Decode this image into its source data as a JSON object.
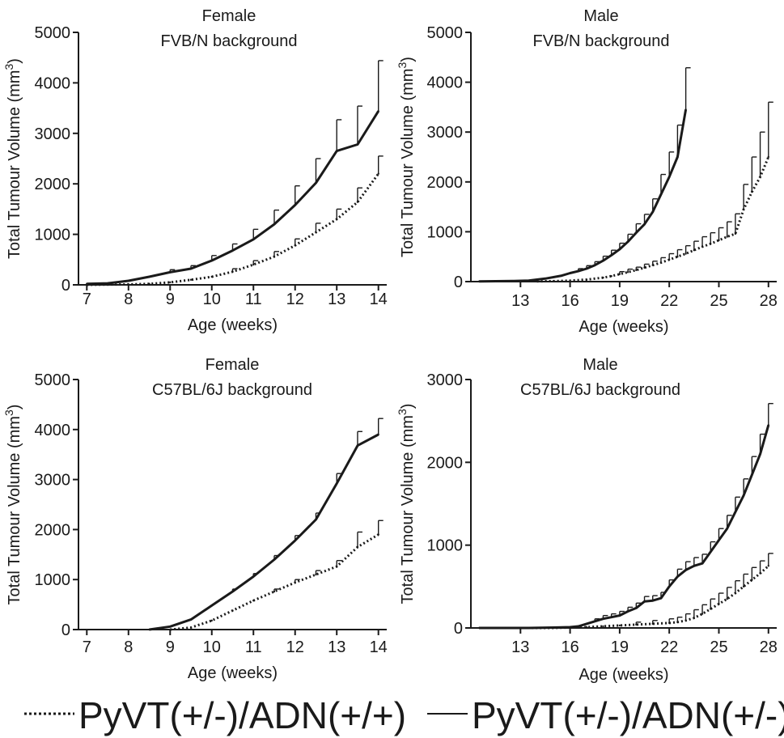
{
  "chart_data": [
    {
      "type": "line",
      "title_lines": [
        "Female",
        "FVB/N background"
      ],
      "xlabel": "Age (weeks)",
      "ylabel": "Total Tumour Volume (mm",
      "ylabel_sup": "3",
      "ylabel_end": ")",
      "xlim": [
        6.8,
        14.2
      ],
      "ylim": [
        0,
        5000
      ],
      "xticks": [
        7,
        8,
        9,
        10,
        11,
        12,
        13,
        14
      ],
      "yticks": [
        0,
        1000,
        2000,
        3000,
        4000,
        5000
      ],
      "series": [
        {
          "style": "solid",
          "x": [
            7,
            7.5,
            8,
            8.5,
            9,
            9.5,
            10,
            10.5,
            11,
            11.5,
            12,
            12.5,
            13,
            13.5,
            14
          ],
          "y": [
            20,
            30,
            80,
            160,
            250,
            320,
            480,
            680,
            900,
            1200,
            1580,
            2020,
            2650,
            2780,
            3440
          ],
          "err": [
            10,
            10,
            20,
            40,
            50,
            60,
            100,
            130,
            200,
            280,
            380,
            480,
            620,
            760,
            1000
          ]
        },
        {
          "style": "dotted",
          "x": [
            7,
            7.5,
            8,
            8.5,
            9,
            9.5,
            10,
            10.5,
            11,
            11.5,
            12,
            12.5,
            13,
            13.5,
            14
          ],
          "y": [
            0,
            5,
            10,
            20,
            50,
            100,
            160,
            260,
            400,
            560,
            780,
            1040,
            1300,
            1640,
            2200
          ],
          "err": [
            5,
            5,
            10,
            20,
            30,
            40,
            40,
            60,
            80,
            100,
            130,
            180,
            200,
            280,
            350
          ]
        }
      ]
    },
    {
      "type": "line",
      "title_lines": [
        "Male",
        "FVB/N background"
      ],
      "xlabel": "Age (weeks)",
      "ylabel": "Total Tumour Volume (mm",
      "ylabel_sup": "3",
      "ylabel_end": ")",
      "xlim": [
        10,
        28.5
      ],
      "ylim": [
        0,
        5000
      ],
      "xticks": [
        13,
        16,
        19,
        22,
        25,
        28
      ],
      "yticks": [
        0,
        1000,
        2000,
        3000,
        4000,
        5000
      ],
      "series": [
        {
          "style": "solid",
          "x": [
            10.5,
            11.5,
            12.5,
            13.5,
            14.5,
            15.5,
            16,
            16.5,
            17,
            17.5,
            18,
            18.5,
            19,
            19.5,
            20,
            20.5,
            21,
            21.5,
            22,
            22.5,
            23
          ],
          "y": [
            5,
            8,
            12,
            20,
            60,
            120,
            170,
            210,
            260,
            330,
            420,
            530,
            650,
            800,
            980,
            1150,
            1400,
            1750,
            2100,
            2500,
            3450
          ],
          "err": [
            5,
            5,
            5,
            10,
            20,
            40,
            40,
            50,
            60,
            70,
            90,
            100,
            120,
            150,
            180,
            200,
            260,
            400,
            500,
            640,
            840
          ]
        },
        {
          "style": "dotted",
          "x": [
            14,
            15,
            16,
            17,
            18,
            18.5,
            19,
            19.5,
            20,
            20.5,
            21,
            21.5,
            22,
            22.5,
            23,
            23.5,
            24,
            24.5,
            25,
            25.5,
            26,
            26.5,
            27,
            27.5,
            28
          ],
          "y": [
            5,
            10,
            20,
            40,
            80,
            110,
            150,
            190,
            230,
            280,
            330,
            380,
            440,
            500,
            560,
            630,
            700,
            760,
            830,
            900,
            960,
            1450,
            1800,
            2100,
            2500
          ],
          "err": [
            5,
            5,
            10,
            20,
            30,
            40,
            50,
            60,
            60,
            70,
            80,
            100,
            120,
            140,
            160,
            180,
            200,
            220,
            250,
            300,
            400,
            500,
            700,
            900,
            1100
          ]
        }
      ]
    },
    {
      "type": "line",
      "title_lines": [
        "Female",
        "C57BL/6J background"
      ],
      "xlabel": "Age (weeks)",
      "ylabel": "Total Tumour Volume (mm",
      "ylabel_sup": "3",
      "ylabel_end": ")",
      "xlim": [
        6.8,
        14.2
      ],
      "ylim": [
        0,
        5000
      ],
      "xticks": [
        7,
        8,
        9,
        10,
        11,
        12,
        13,
        14
      ],
      "yticks": [
        0,
        1000,
        2000,
        3000,
        4000,
        5000
      ],
      "series": [
        {
          "style": "solid",
          "x": [
            8.5,
            9,
            9.5,
            10,
            10.5,
            11,
            11.5,
            12,
            12.5,
            13,
            13.5,
            14
          ],
          "y": [
            0,
            60,
            200,
            480,
            760,
            1060,
            1400,
            1780,
            2200,
            2920,
            3680,
            3900
          ],
          "err": [
            5,
            10,
            20,
            40,
            50,
            60,
            80,
            100,
            130,
            200,
            280,
            320
          ]
        },
        {
          "style": "dotted",
          "x": [
            9,
            9.5,
            10,
            10.5,
            11,
            11.5,
            12,
            12.5,
            13,
            13.5,
            14
          ],
          "y": [
            0,
            40,
            180,
            380,
            580,
            760,
            940,
            1100,
            1260,
            1650,
            1900
          ],
          "err": [
            5,
            10,
            20,
            30,
            40,
            50,
            60,
            80,
            120,
            300,
            280
          ]
        }
      ]
    },
    {
      "type": "line",
      "title_lines": [
        "Male",
        "C57BL/6J background"
      ],
      "xlabel": "Age (weeks)",
      "ylabel": "Total Tumour Volume (mm",
      "ylabel_sup": "3",
      "ylabel_end": ")",
      "xlim": [
        10,
        28.5
      ],
      "ylim": [
        0,
        3000
      ],
      "xticks": [
        13,
        16,
        19,
        22,
        25,
        28
      ],
      "yticks": [
        0,
        1000,
        2000,
        3000
      ],
      "series": [
        {
          "style": "solid",
          "x": [
            10.5,
            12,
            13.5,
            15,
            16,
            16.5,
            17,
            17.5,
            18,
            18.5,
            19,
            19.5,
            20,
            20.5,
            21,
            21.5,
            22,
            22.5,
            23,
            23.5,
            24,
            24.5,
            25,
            25.5,
            26,
            26.5,
            27,
            27.5,
            28
          ],
          "y": [
            0,
            0,
            0,
            5,
            10,
            20,
            50,
            80,
            110,
            130,
            150,
            200,
            240,
            320,
            330,
            360,
            500,
            620,
            700,
            750,
            780,
            920,
            1060,
            1200,
            1400,
            1600,
            1850,
            2100,
            2450
          ],
          "err": [
            5,
            5,
            5,
            5,
            10,
            10,
            20,
            30,
            40,
            40,
            50,
            50,
            60,
            60,
            60,
            70,
            80,
            90,
            100,
            100,
            110,
            120,
            140,
            160,
            180,
            200,
            220,
            240,
            260
          ]
        },
        {
          "style": "dotted",
          "x": [
            10.5,
            12,
            13.5,
            15,
            16,
            17,
            18,
            19,
            20,
            21,
            22,
            22.5,
            23,
            23.5,
            24,
            24.5,
            25,
            25.5,
            26,
            26.5,
            27,
            27.5,
            28
          ],
          "y": [
            0,
            0,
            0,
            0,
            5,
            10,
            20,
            30,
            40,
            50,
            60,
            70,
            90,
            120,
            170,
            230,
            290,
            350,
            420,
            500,
            580,
            660,
            750
          ],
          "err": [
            5,
            5,
            5,
            5,
            5,
            10,
            10,
            20,
            30,
            40,
            50,
            60,
            80,
            100,
            110,
            120,
            130,
            140,
            150,
            150,
            150,
            150,
            150
          ]
        }
      ]
    }
  ],
  "legend": {
    "items": [
      {
        "style": "dotted",
        "label": "PyVT(+/-)/ADN(+/+)"
      },
      {
        "style": "solid",
        "label": "PyVT(+/-)/ADN(+/-)"
      }
    ]
  },
  "colors": {
    "ink": "#1a1a1a",
    "background": "#ffffff"
  }
}
